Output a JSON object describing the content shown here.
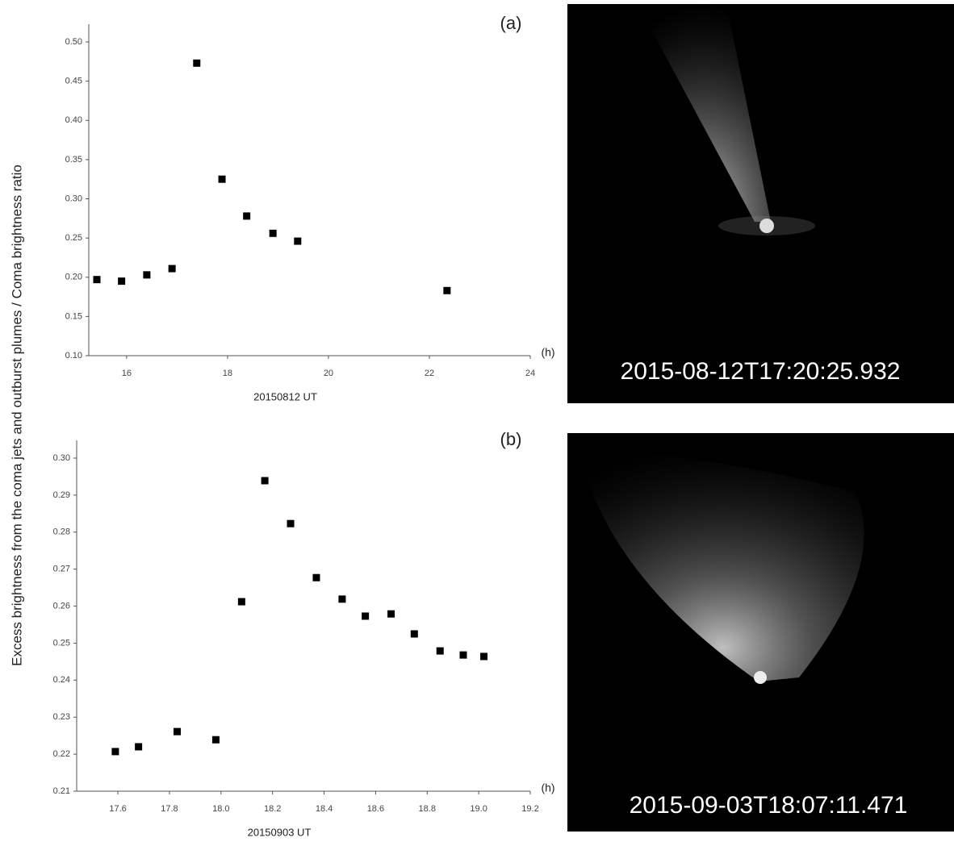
{
  "shared_ylabel": "Excess brightness from the coma jets and outburst plumes / Coma brightness ratio",
  "chart_data": [
    {
      "type": "scatter",
      "panel_label": "(a)",
      "xunit": "(h)",
      "xlabel": "20150812 UT",
      "color": "#000000",
      "x": [
        15.41,
        15.9,
        16.4,
        16.9,
        17.39,
        17.89,
        18.38,
        18.9,
        19.39,
        22.35
      ],
      "series": [
        {
          "name": "ratio",
          "color": "#000000",
          "values": [
            0.197,
            0.195,
            0.203,
            0.211,
            0.473,
            0.325,
            0.278,
            0.256,
            0.246,
            0.183
          ]
        }
      ],
      "xlim": [
        15.25,
        24
      ],
      "xticks": [
        16,
        18,
        20,
        22,
        24
      ],
      "ylim": [
        0.1,
        0.5
      ],
      "yticks": [
        {
          "value": 0.1,
          "label": "0.10"
        },
        0.15,
        {
          "value": 0.2,
          "label": "0.20"
        },
        0.25,
        {
          "value": 0.3,
          "label": "0.30"
        },
        0.35,
        {
          "value": 0.4,
          "label": "0.40"
        },
        0.45,
        {
          "value": 0.5,
          "label": "0.50"
        }
      ]
    },
    {
      "type": "scatter",
      "panel_label": "(b)",
      "xunit": "(h)",
      "xlabel": "20150903 UT",
      "color": "#000000",
      "x": [
        17.59,
        17.68,
        17.83,
        17.98,
        18.08,
        18.17,
        18.27,
        18.37,
        18.47,
        18.56,
        18.66,
        18.75,
        18.85,
        18.94,
        19.02
      ],
      "series": [
        {
          "name": "ratio",
          "color": "#000000",
          "values": [
            0.2207,
            0.222,
            0.2261,
            0.2239,
            0.2612,
            0.2939,
            0.2823,
            0.2677,
            0.2619,
            0.2573,
            0.2579,
            0.2525,
            0.2479,
            0.2468,
            0.2464
          ]
        }
      ],
      "xlim": [
        17.44,
        19.2
      ],
      "xticks": [
        17.6,
        17.8,
        {
          "value": 18,
          "label": "18.0"
        },
        18.2,
        18.4,
        18.6,
        18.8,
        {
          "value": 19,
          "label": "19.0"
        },
        19.2
      ],
      "ylim": [
        0.21,
        0.3
      ],
      "yticks": [
        0.21,
        0.22,
        0.23,
        0.24,
        0.25,
        0.26,
        0.27,
        0.28,
        0.29,
        {
          "value": 0.3,
          "label": "0.30"
        }
      ]
    }
  ],
  "images": [
    {
      "caption": "2015-08-12T17:20:25.932"
    },
    {
      "caption": "2015-09-03T18:07:11.471"
    }
  ]
}
